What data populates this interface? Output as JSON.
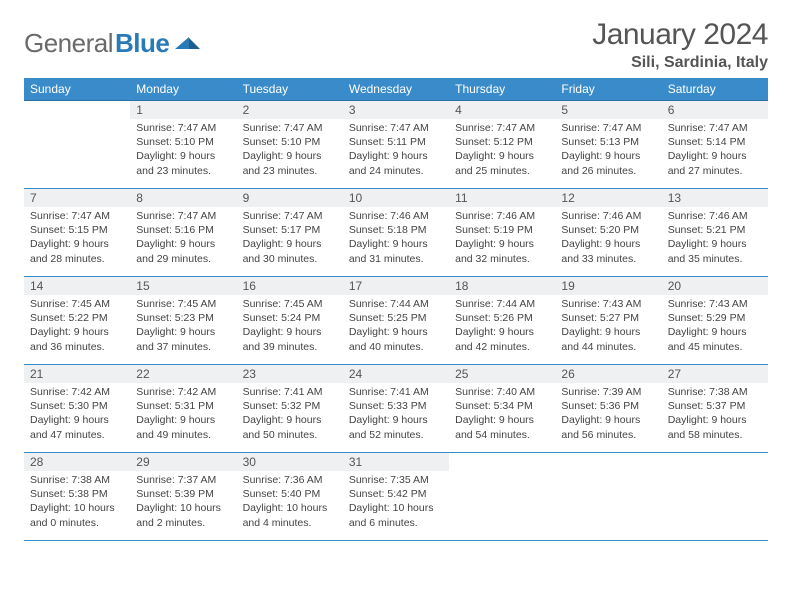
{
  "logo": {
    "general": "General",
    "blue": "Blue"
  },
  "header": {
    "month": "January 2024",
    "location": "Sili, Sardinia, Italy"
  },
  "dow": [
    "Sunday",
    "Monday",
    "Tuesday",
    "Wednesday",
    "Thursday",
    "Friday",
    "Saturday"
  ],
  "layout": {
    "start_offset": 1,
    "days_in_month": 31
  },
  "days": {
    "1": {
      "sr": "7:47 AM",
      "ss": "5:10 PM",
      "dh": 9,
      "dm": 23
    },
    "2": {
      "sr": "7:47 AM",
      "ss": "5:10 PM",
      "dh": 9,
      "dm": 23
    },
    "3": {
      "sr": "7:47 AM",
      "ss": "5:11 PM",
      "dh": 9,
      "dm": 24
    },
    "4": {
      "sr": "7:47 AM",
      "ss": "5:12 PM",
      "dh": 9,
      "dm": 25
    },
    "5": {
      "sr": "7:47 AM",
      "ss": "5:13 PM",
      "dh": 9,
      "dm": 26
    },
    "6": {
      "sr": "7:47 AM",
      "ss": "5:14 PM",
      "dh": 9,
      "dm": 27
    },
    "7": {
      "sr": "7:47 AM",
      "ss": "5:15 PM",
      "dh": 9,
      "dm": 28
    },
    "8": {
      "sr": "7:47 AM",
      "ss": "5:16 PM",
      "dh": 9,
      "dm": 29
    },
    "9": {
      "sr": "7:47 AM",
      "ss": "5:17 PM",
      "dh": 9,
      "dm": 30
    },
    "10": {
      "sr": "7:46 AM",
      "ss": "5:18 PM",
      "dh": 9,
      "dm": 31
    },
    "11": {
      "sr": "7:46 AM",
      "ss": "5:19 PM",
      "dh": 9,
      "dm": 32
    },
    "12": {
      "sr": "7:46 AM",
      "ss": "5:20 PM",
      "dh": 9,
      "dm": 33
    },
    "13": {
      "sr": "7:46 AM",
      "ss": "5:21 PM",
      "dh": 9,
      "dm": 35
    },
    "14": {
      "sr": "7:45 AM",
      "ss": "5:22 PM",
      "dh": 9,
      "dm": 36
    },
    "15": {
      "sr": "7:45 AM",
      "ss": "5:23 PM",
      "dh": 9,
      "dm": 37
    },
    "16": {
      "sr": "7:45 AM",
      "ss": "5:24 PM",
      "dh": 9,
      "dm": 39
    },
    "17": {
      "sr": "7:44 AM",
      "ss": "5:25 PM",
      "dh": 9,
      "dm": 40
    },
    "18": {
      "sr": "7:44 AM",
      "ss": "5:26 PM",
      "dh": 9,
      "dm": 42
    },
    "19": {
      "sr": "7:43 AM",
      "ss": "5:27 PM",
      "dh": 9,
      "dm": 44
    },
    "20": {
      "sr": "7:43 AM",
      "ss": "5:29 PM",
      "dh": 9,
      "dm": 45
    },
    "21": {
      "sr": "7:42 AM",
      "ss": "5:30 PM",
      "dh": 9,
      "dm": 47
    },
    "22": {
      "sr": "7:42 AM",
      "ss": "5:31 PM",
      "dh": 9,
      "dm": 49
    },
    "23": {
      "sr": "7:41 AM",
      "ss": "5:32 PM",
      "dh": 9,
      "dm": 50
    },
    "24": {
      "sr": "7:41 AM",
      "ss": "5:33 PM",
      "dh": 9,
      "dm": 52
    },
    "25": {
      "sr": "7:40 AM",
      "ss": "5:34 PM",
      "dh": 9,
      "dm": 54
    },
    "26": {
      "sr": "7:39 AM",
      "ss": "5:36 PM",
      "dh": 9,
      "dm": 56
    },
    "27": {
      "sr": "7:38 AM",
      "ss": "5:37 PM",
      "dh": 9,
      "dm": 58
    },
    "28": {
      "sr": "7:38 AM",
      "ss": "5:38 PM",
      "dh": 10,
      "dm": 0
    },
    "29": {
      "sr": "7:37 AM",
      "ss": "5:39 PM",
      "dh": 10,
      "dm": 2
    },
    "30": {
      "sr": "7:36 AM",
      "ss": "5:40 PM",
      "dh": 10,
      "dm": 4
    },
    "31": {
      "sr": "7:35 AM",
      "ss": "5:42 PM",
      "dh": 10,
      "dm": 6
    }
  },
  "labels": {
    "sunrise": "Sunrise:",
    "sunset": "Sunset:",
    "daylight": "Daylight:"
  },
  "colors": {
    "header_bg": "#3a8bc9",
    "header_text": "#ffffff",
    "daynum_bg": "#eef0f1",
    "border": "#3a8bc9",
    "logo_blue": "#2a7ab8",
    "logo_gray": "#6a6a6a"
  },
  "typography": {
    "body_pt": 10.5,
    "daynum_pt": 12,
    "dow_pt": 12,
    "title_pt": 30,
    "loc_pt": 16
  }
}
